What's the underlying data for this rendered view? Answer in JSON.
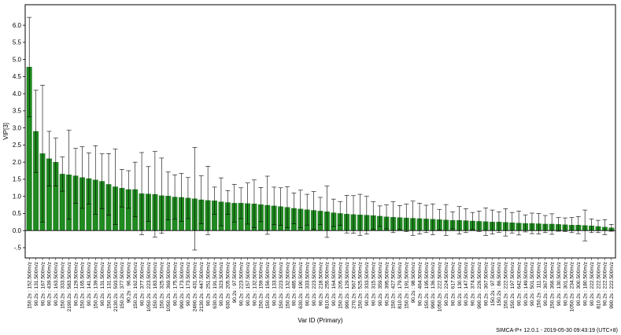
{
  "footer_text": "SIMCA-P+ 12.0.1 - 2019-05-30 09:43:19 (UTC+8)",
  "chart_data": {
    "type": "bar",
    "ylabel": "VIP[3]",
    "xlabel": "Var ID (Primary)",
    "ylim": [
      -0.8,
      6.6
    ],
    "yticks": [
      -0.5,
      0,
      0.5,
      1,
      1.5,
      2,
      2.5,
      3,
      3.5,
      4,
      4.5,
      5,
      5.5,
      6
    ],
    "bar_color": "#1f8a1f",
    "grid": false,
    "categories": [
      "150.2s : 152.500m/z",
      "90.2s : 131.500m/z",
      "90.2s : 167.500m/z",
      "90.2s : 439.500m/z",
      "90.2s : 163.500m/z",
      "150.2s : 333.500m/z",
      "2190.2s : 583.500m/z",
      "90.2s : 129.500m/z",
      "150.2s : 165.500m/z",
      "90.2s : 141.500m/z",
      "150.2s : 139.500m/z",
      "90.2s : 131.500m/z",
      "150.2s : 131.500m/z",
      "2130.2s : 593.500m/z",
      "150.2s : 377.500m/z",
      "90.2s : 96.500m/z",
      "150.2s : 162.500m/z",
      "90.2s : 377.500m/z",
      "1050.2s : 223.500m/z",
      "150.2s : 183.500m/z",
      "150.2s : 325.500m/z",
      "1050.2s : 369.500m/z",
      "90.2s : 175.500m/z",
      "990.2s : 173.500m/z",
      "90.2s : 173.500m/z",
      "2490.2s : 431.500m/z",
      "2130.2s : 447.500m/z",
      "90.2s : 251.500m/z",
      "630.2s : 191.500m/z",
      "90.2s : 323.500m/z",
      "630.2s : 205.500m/z",
      "90.2s : 97.500m/z",
      "90.2s : 223.500m/z",
      "90.2s : 157.500m/z",
      "90.2s : 132.500m/z",
      "150.2s : 159.500m/z",
      "150.2s : 156.500m/z",
      "90.2s : 133.500m/z",
      "150.2s : 223.500m/z",
      "150.2s : 132.500m/z",
      "90.2s : 485.500m/z",
      "630.2s : 190.500m/z",
      "90.2s : 333.500m/z",
      "90.2s : 223.500m/z",
      "90.2s : 218.500m/z",
      "810.2s : 255.500m/z",
      "90.2s : 164.500m/z",
      "150.2s : 205.500m/z",
      "990.2s : 129.500m/z",
      "270.2s : 567.500m/z",
      "150.2s : 525.500m/z",
      "90.2s : 333.500m/z",
      "90.2s : 315.500m/z",
      "90.2s : 359.500m/z",
      "90.2s : 395.500m/z",
      "150.2s : 427.500m/z",
      "810.2s : 179.500m/z",
      "150.2s : 191.500m/z",
      "90.2s : 98.500m/z",
      "90.2s : 464.500m/z",
      "150.2s : 195.500m/z",
      "990.2s : 136.500m/z",
      "1050.2s : 222.500m/z",
      "90.2s : 224.500m/z",
      "90.2s : 617.500m/z",
      "90.2s : 130.500m/z",
      "90.2s : 147.500m/z",
      "90.2s : 374.500m/z",
      "990.2s : 226.500m/z",
      "90.2s : 367.500m/z",
      "150.2s : 97.500m/z",
      "150.2s : 86.500m/z",
      "150.2s : 222.500m/z",
      "150.2s : 197.500m/z",
      "90.2s : 642.500m/z",
      "90.2s : 149.500m/z",
      "90.2s : 501.500m/z",
      "150.2s : 111.500m/z",
      "90.2s : 367.500m/z",
      "150.2s : 366.500m/z",
      "90.2s : 130.500m/z",
      "90.2s : 301.500m/z",
      "1050.2s : 234.500m/z",
      "90.2s : 300.500m/z",
      "90.2s : 180.500m/z",
      "90.2s : 222.500m/z",
      "810.2s : 222.500m/z",
      "90.2s : 222.500m/z",
      "990.2s : 222.500m/z"
    ],
    "values": [
      4.78,
      2.9,
      2.25,
      2.1,
      2.0,
      1.65,
      1.63,
      1.6,
      1.55,
      1.52,
      1.48,
      1.44,
      1.35,
      1.28,
      1.24,
      1.2,
      1.2,
      1.08,
      1.07,
      1.06,
      1.02,
      1.01,
      0.98,
      0.97,
      0.95,
      0.93,
      0.9,
      0.88,
      0.87,
      0.84,
      0.82,
      0.8,
      0.8,
      0.79,
      0.78,
      0.76,
      0.74,
      0.72,
      0.7,
      0.68,
      0.65,
      0.63,
      0.61,
      0.59,
      0.57,
      0.55,
      0.52,
      0.5,
      0.48,
      0.47,
      0.46,
      0.45,
      0.44,
      0.42,
      0.4,
      0.39,
      0.38,
      0.37,
      0.36,
      0.35,
      0.34,
      0.33,
      0.32,
      0.31,
      0.3,
      0.3,
      0.29,
      0.28,
      0.27,
      0.26,
      0.25,
      0.25,
      0.24,
      0.23,
      0.22,
      0.21,
      0.21,
      0.2,
      0.19,
      0.19,
      0.18,
      0.17,
      0.16,
      0.16,
      0.15,
      0.14,
      0.12,
      0.1,
      0.08
    ],
    "errors": [
      1.45,
      1.2,
      2.0,
      0.8,
      0.7,
      0.5,
      1.3,
      0.8,
      0.9,
      0.75,
      1.0,
      0.8,
      0.9,
      1.1,
      0.55,
      0.55,
      0.8,
      1.2,
      0.8,
      1.25,
      1.1,
      0.7,
      0.65,
      0.7,
      0.6,
      1.5,
      0.7,
      1.0,
      0.4,
      0.7,
      0.35,
      0.55,
      0.45,
      0.6,
      0.7,
      0.5,
      0.85,
      0.55,
      0.55,
      0.6,
      0.45,
      0.55,
      0.45,
      0.55,
      0.4,
      0.75,
      0.4,
      0.35,
      0.55,
      0.55,
      0.6,
      0.55,
      0.4,
      0.3,
      0.35,
      0.45,
      0.35,
      0.4,
      0.5,
      0.45,
      0.4,
      0.45,
      0.3,
      0.45,
      0.25,
      0.4,
      0.35,
      0.25,
      0.3,
      0.4,
      0.35,
      0.3,
      0.4,
      0.3,
      0.35,
      0.25,
      0.3,
      0.3,
      0.25,
      0.3,
      0.2,
      0.2,
      0.22,
      0.25,
      0.45,
      0.2,
      0.18,
      0.22,
      0.1
    ]
  }
}
